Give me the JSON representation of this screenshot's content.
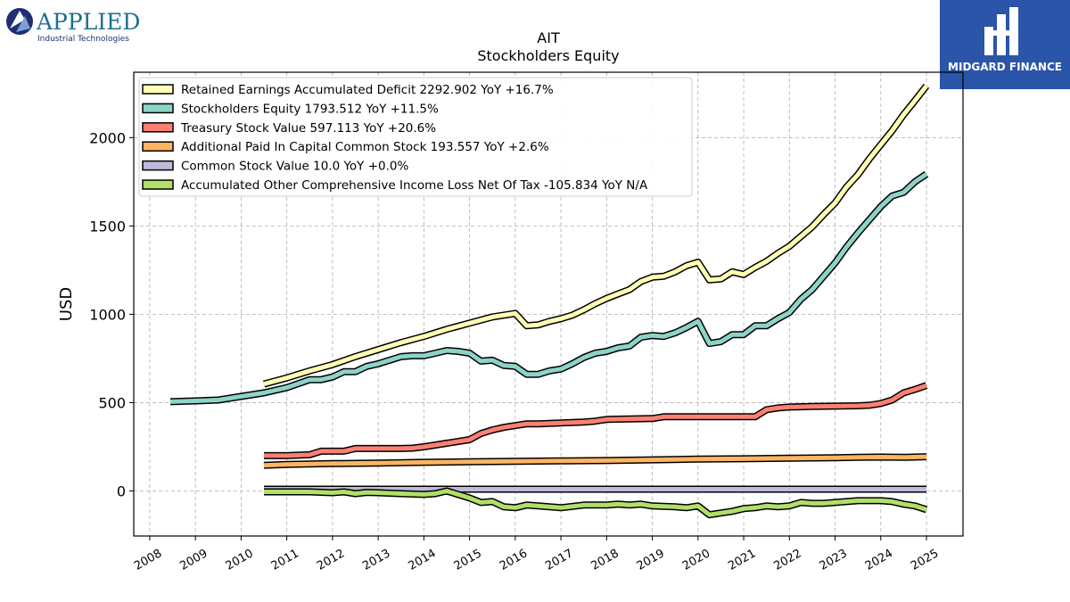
{
  "logos": {
    "left_name": "APPLIED",
    "left_sub": "Industrial Technologies",
    "right_name": "MIDGARD FINANCE"
  },
  "chart_data": {
    "type": "line",
    "title": "AIT",
    "subtitle": "Stockholders  Equity",
    "xlabel": "",
    "ylabel": "USD",
    "xlim": [
      2007.65,
      2025.8
    ],
    "ylim": [
      -255,
      2370
    ],
    "x_ticks": [
      2008,
      2009,
      2010,
      2011,
      2012,
      2013,
      2014,
      2015,
      2016,
      2017,
      2018,
      2019,
      2020,
      2021,
      2022,
      2023,
      2024,
      2025
    ],
    "y_ticks": [
      0,
      500,
      1000,
      1500,
      2000
    ],
    "grid": true,
    "legend_position": "top-left",
    "series": [
      {
        "name": "Retained Earnings Accumulated Deficit",
        "legend": "Retained Earnings Accumulated Deficit  2292.902 YoY +16.7%",
        "color": "#ffffb3",
        "x": [
          2010.5,
          2011.0,
          2011.5,
          2012.0,
          2012.5,
          2013.0,
          2013.5,
          2014.0,
          2014.5,
          2015.0,
          2015.5,
          2016.0,
          2016.25,
          2016.5,
          2016.75,
          2017.0,
          2017.25,
          2017.5,
          2017.75,
          2018.0,
          2018.25,
          2018.5,
          2018.75,
          2019.0,
          2019.25,
          2019.5,
          2019.75,
          2020.0,
          2020.25,
          2020.5,
          2020.75,
          2021.0,
          2021.25,
          2021.5,
          2021.75,
          2022.0,
          2022.25,
          2022.5,
          2022.75,
          2023.0,
          2023.25,
          2023.5,
          2023.75,
          2024.0,
          2024.25,
          2024.5,
          2024.75,
          2025.0
        ],
        "values": [
          605,
          640,
          680,
          715,
          760,
          800,
          840,
          875,
          915,
          950,
          985,
          1005,
          935,
          940,
          960,
          975,
          995,
          1025,
          1060,
          1090,
          1115,
          1140,
          1185,
          1210,
          1215,
          1240,
          1275,
          1295,
          1195,
          1200,
          1240,
          1225,
          1265,
          1300,
          1345,
          1385,
          1440,
          1495,
          1565,
          1630,
          1720,
          1790,
          1880,
          1960,
          2040,
          2130,
          2210,
          2292.9
        ]
      },
      {
        "name": "Stockholders Equity",
        "legend": "Stockholders Equity  1793.512 YoY +11.5%",
        "color": "#8dd3c7",
        "x": [
          2008.45,
          2009.0,
          2009.5,
          2010.0,
          2010.5,
          2011.0,
          2011.5,
          2011.75,
          2012.0,
          2012.25,
          2012.5,
          2012.75,
          2013.0,
          2013.25,
          2013.5,
          2013.75,
          2014.0,
          2014.25,
          2014.5,
          2014.75,
          2015.0,
          2015.25,
          2015.5,
          2015.75,
          2016.0,
          2016.25,
          2016.5,
          2016.75,
          2017.0,
          2017.25,
          2017.5,
          2017.75,
          2018.0,
          2018.25,
          2018.5,
          2018.75,
          2019.0,
          2019.25,
          2019.5,
          2019.75,
          2020.0,
          2020.25,
          2020.5,
          2020.75,
          2021.0,
          2021.25,
          2021.5,
          2021.75,
          2022.0,
          2022.25,
          2022.5,
          2022.75,
          2023.0,
          2023.25,
          2023.5,
          2023.75,
          2024.0,
          2024.25,
          2024.5,
          2024.75,
          2025.0
        ],
        "values": [
          505,
          510,
          515,
          535,
          555,
          585,
          630,
          630,
          645,
          675,
          675,
          705,
          720,
          740,
          760,
          765,
          765,
          780,
          795,
          790,
          780,
          735,
          740,
          710,
          705,
          660,
          660,
          680,
          690,
          720,
          755,
          780,
          790,
          810,
          820,
          870,
          880,
          875,
          895,
          925,
          960,
          835,
          845,
          885,
          885,
          935,
          935,
          975,
          1010,
          1085,
          1140,
          1215,
          1290,
          1380,
          1460,
          1535,
          1610,
          1670,
          1690,
          1750,
          1793.5
        ]
      },
      {
        "name": "Treasury Stock Value",
        "legend": "Treasury Stock Value  597.113 YoY +20.6%",
        "color": "#fb8072",
        "x": [
          2010.5,
          2011.0,
          2011.5,
          2011.75,
          2012.0,
          2012.25,
          2012.5,
          2013.0,
          2013.5,
          2013.75,
          2014.0,
          2014.5,
          2015.0,
          2015.25,
          2015.5,
          2015.75,
          2016.0,
          2016.25,
          2016.5,
          2017.0,
          2017.5,
          2017.75,
          2018.0,
          2018.5,
          2019.0,
          2019.25,
          2019.5,
          2020.0,
          2020.5,
          2021.0,
          2021.25,
          2021.5,
          2021.75,
          2022.0,
          2022.5,
          2023.0,
          2023.5,
          2023.75,
          2024.0,
          2024.25,
          2024.5,
          2024.75,
          2025.0
        ],
        "values": [
          200,
          200,
          205,
          225,
          225,
          225,
          240,
          240,
          240,
          242,
          250,
          270,
          290,
          325,
          345,
          360,
          370,
          380,
          380,
          385,
          390,
          395,
          405,
          408,
          410,
          420,
          420,
          420,
          420,
          420,
          420,
          460,
          470,
          475,
          478,
          480,
          482,
          485,
          495,
          515,
          555,
          575,
          597.1
        ]
      },
      {
        "name": "Additional Paid In Capital Common Stock",
        "legend": "Additional Paid In Capital Common Stock  193.557 YoY +2.6%",
        "color": "#fdb462",
        "x": [
          2010.5,
          2011.0,
          2012.0,
          2013.0,
          2014.0,
          2015.0,
          2016.0,
          2017.0,
          2018.0,
          2019.0,
          2020.0,
          2021.0,
          2022.0,
          2023.0,
          2023.5,
          2024.0,
          2024.5,
          2025.0
        ],
        "values": [
          145,
          150,
          155,
          158,
          162,
          165,
          168,
          170,
          172,
          176,
          180,
          182,
          185,
          188,
          190,
          192,
          190,
          193.6
        ]
      },
      {
        "name": "Common Stock Value",
        "legend": "Common Stock Value  10.0 YoY +0.0%",
        "color": "#bebada",
        "x": [
          2010.5,
          2025.0
        ],
        "values": [
          10,
          10
        ]
      },
      {
        "name": "Accumulated Other Comprehensive Income Loss Net Of Tax",
        "legend": "Accumulated Other Comprehensive Income Loss Net Of Tax  -105.834 YoY N/A",
        "color": "#b3de69",
        "x": [
          2010.5,
          2011.0,
          2011.5,
          2012.0,
          2012.25,
          2012.5,
          2012.75,
          2013.0,
          2013.5,
          2014.0,
          2014.25,
          2014.5,
          2014.75,
          2015.0,
          2015.25,
          2015.5,
          2015.75,
          2016.0,
          2016.25,
          2016.5,
          2017.0,
          2017.5,
          2018.0,
          2018.25,
          2018.5,
          2018.75,
          2019.0,
          2019.5,
          2019.75,
          2020.0,
          2020.25,
          2020.5,
          2020.75,
          2021.0,
          2021.25,
          2021.5,
          2021.75,
          2022.0,
          2022.25,
          2022.5,
          2022.75,
          2023.0,
          2023.25,
          2023.5,
          2023.75,
          2024.0,
          2024.25,
          2024.5,
          2024.75,
          2025.0
        ],
        "values": [
          -5,
          -5,
          -5,
          -10,
          -5,
          -15,
          -8,
          -10,
          -15,
          -20,
          -15,
          0,
          -20,
          -40,
          -65,
          -60,
          -90,
          -95,
          -80,
          -85,
          -95,
          -80,
          -80,
          -75,
          -80,
          -75,
          -85,
          -90,
          -95,
          -85,
          -135,
          -125,
          -115,
          -100,
          -95,
          -85,
          -90,
          -85,
          -65,
          -70,
          -70,
          -65,
          -60,
          -55,
          -55,
          -55,
          -60,
          -75,
          -85,
          -105.8
        ]
      }
    ]
  }
}
